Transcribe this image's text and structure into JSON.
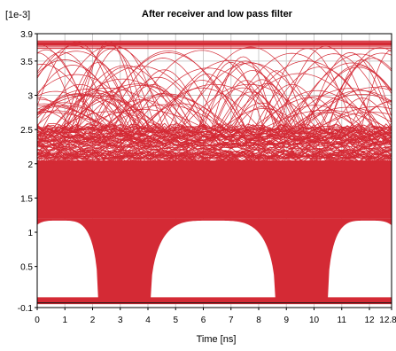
{
  "chart_data": {
    "type": "line",
    "title": "After receiver and low pass filter",
    "y_unit_label": "[1e-3]",
    "xlabel": "Time [ns]",
    "ylabel": "",
    "xlim": [
      0,
      12.8
    ],
    "ylim": [
      -0.1,
      3.9
    ],
    "x_ticks": [
      0,
      1,
      2,
      3,
      4,
      5,
      6,
      7,
      8,
      9,
      10,
      11,
      12,
      12.8
    ],
    "x_tick_labels": [
      "0",
      "1",
      "2",
      "3",
      "4",
      "5",
      "6",
      "7",
      "8",
      "9",
      "10",
      "11",
      "12",
      "12.8"
    ],
    "y_ticks": [
      -0.1,
      0.5,
      1,
      1.5,
      2,
      2.5,
      3,
      3.5,
      3.9
    ],
    "y_tick_labels": [
      "-0.1",
      "0.5",
      "1",
      "1.5",
      "2",
      "2.5",
      "3",
      "3.5",
      "3.9"
    ],
    "grid": true,
    "series_color": "#d42a35",
    "eye_diagram": {
      "bit_period_ns": 6.4,
      "eye_open_center_ns": [
        3.2,
        9.6
      ],
      "crossing_ns": [
        2.2,
        4.1,
        8.6,
        10.5
      ],
      "low_level": -0.05,
      "eye_low_bound": 0.0,
      "eye_top_bound": 1.2,
      "band_upper": 2.05,
      "band_top": 2.55,
      "peak_level": 3.8
    }
  }
}
